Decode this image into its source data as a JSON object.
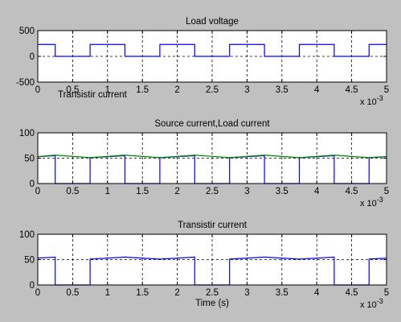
{
  "figure": {
    "background": "#c0c0c0",
    "axes_bg": "#ffffff",
    "stray_label": "Transistir current"
  },
  "colors": {
    "blue": "#0000ff",
    "green": "#008000",
    "black": "#000000"
  },
  "chart_data": [
    {
      "type": "line",
      "title": "Load voltage",
      "xlabel": "",
      "ylabel": "",
      "xlim": [
        0,
        5
      ],
      "ylim": [
        -500,
        500
      ],
      "x_ticks": [
        0,
        0.5,
        1,
        1.5,
        2,
        2.5,
        3,
        3.5,
        4,
        4.5,
        5
      ],
      "x_tick_labels": [
        "0",
        "0.5",
        "1",
        "1.5",
        "2",
        "2.5",
        "3",
        "3.5",
        "4",
        "4.5",
        "5"
      ],
      "y_ticks": [
        -500,
        0,
        500
      ],
      "y_tick_labels": [
        "-500",
        "0",
        "500"
      ],
      "x_multiplier": "x 10",
      "x_multiplier_exp": "-3",
      "grid": true,
      "series": [
        {
          "color": "#0000ff",
          "x": [
            0,
            0.25,
            0.25,
            0.75,
            0.75,
            1.25,
            1.25,
            1.75,
            1.75,
            2.25,
            2.25,
            2.75,
            2.75,
            3.25,
            3.25,
            3.75,
            3.75,
            4.25,
            4.25,
            4.75,
            4.75,
            5
          ],
          "y": [
            230,
            230,
            0,
            0,
            230,
            230,
            0,
            0,
            230,
            230,
            0,
            0,
            230,
            230,
            0,
            0,
            230,
            230,
            0,
            0,
            230,
            230
          ]
        }
      ]
    },
    {
      "type": "line",
      "title": "Source current,Load current",
      "xlabel": "",
      "ylabel": "",
      "xlim": [
        0,
        5
      ],
      "ylim": [
        0,
        100
      ],
      "x_ticks": [
        0,
        0.5,
        1,
        1.5,
        2,
        2.5,
        3,
        3.5,
        4,
        4.5,
        5
      ],
      "x_tick_labels": [
        "0",
        "0.5",
        "1",
        "1.5",
        "2",
        "2.5",
        "3",
        "3.5",
        "4",
        "4.5",
        "5"
      ],
      "y_ticks": [
        0,
        50,
        100
      ],
      "y_tick_labels": [
        "0",
        "50",
        "100"
      ],
      "x_multiplier": "x 10",
      "x_multiplier_exp": "-3",
      "grid": true,
      "series": [
        {
          "color": "#0000ff",
          "x": [
            0,
            0.25,
            0.25,
            0.75,
            0.75,
            1.25,
            1.25,
            1.75,
            1.75,
            2.25,
            2.25,
            2.75,
            2.75,
            3.25,
            3.25,
            3.75,
            3.75,
            4.25,
            4.25,
            4.75,
            4.75,
            5
          ],
          "y": [
            53,
            55,
            0,
            0,
            51,
            55,
            0,
            0,
            51,
            55,
            0,
            0,
            51,
            55,
            0,
            0,
            51,
            55,
            0,
            0,
            51,
            53
          ]
        },
        {
          "color": "#008000",
          "x": [
            0,
            0.25,
            0.75,
            1.25,
            1.75,
            2.25,
            2.75,
            3.25,
            3.75,
            4.25,
            4.75,
            5
          ],
          "y": [
            53,
            56,
            51,
            56,
            51,
            56,
            51,
            56,
            51,
            56,
            51,
            53
          ]
        }
      ]
    },
    {
      "type": "line",
      "title": "Transistir current",
      "xlabel": "Time (s)",
      "ylabel": "",
      "xlim": [
        0,
        5
      ],
      "ylim": [
        0,
        100
      ],
      "x_ticks": [
        0,
        0.5,
        1,
        1.5,
        2,
        2.5,
        3,
        3.5,
        4,
        4.5,
        5
      ],
      "x_tick_labels": [
        "0",
        "0.5",
        "1",
        "1.5",
        "2",
        "2.5",
        "3",
        "3.5",
        "4",
        "4.5",
        "5"
      ],
      "y_ticks": [
        0,
        50,
        100
      ],
      "y_tick_labels": [
        "0",
        "50",
        "100"
      ],
      "x_multiplier": "x 10",
      "x_multiplier_exp": "-3",
      "grid": true,
      "series": [
        {
          "color": "#0000ff",
          "x": [
            0,
            0.25,
            0.25,
            0.75,
            0.75,
            1.25,
            1.75,
            2.25,
            2.25,
            2.75,
            2.75,
            3.25,
            3.75,
            4.25,
            4.25,
            4.75,
            4.75,
            5
          ],
          "y": [
            53,
            55,
            0,
            0,
            51,
            55,
            51,
            55,
            0,
            0,
            51,
            55,
            51,
            55,
            0,
            0,
            51,
            53
          ]
        }
      ]
    }
  ]
}
